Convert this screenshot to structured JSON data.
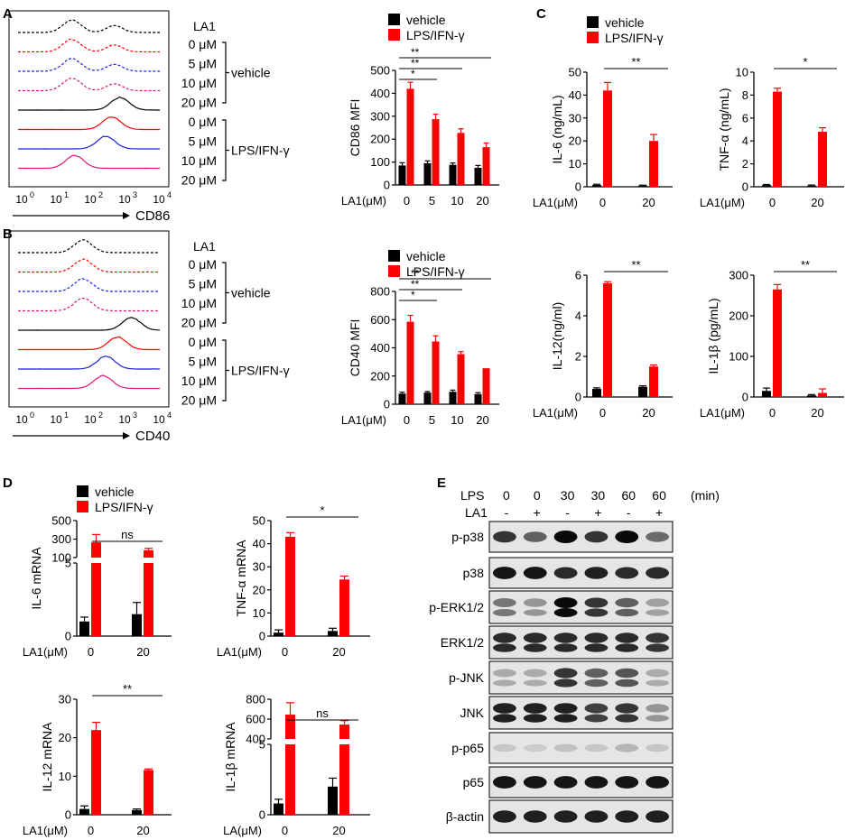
{
  "panels": {
    "A": "A",
    "B": "B",
    "C": "C",
    "D": "D",
    "E": "E"
  },
  "colors": {
    "vehicle": "#000000",
    "lps": "#ff0000",
    "blue": "#1a22e0",
    "magenta": "#e0157a"
  },
  "legend": {
    "vehicle": "vehicle",
    "lps": "LPS/IFN-γ"
  },
  "flow": {
    "la1_label": "LA1",
    "conc_labels": [
      "0 μM",
      "5 μM",
      "10 μM",
      "20 μM",
      "0 μM",
      "5 μM",
      "10 μM",
      "20 μM"
    ],
    "group_labels": [
      "vehicle",
      "LPS/IFN-γ"
    ],
    "xtick_base": [
      "10",
      "10",
      "10",
      "10",
      "10"
    ],
    "xtick_exp": [
      "0",
      "1",
      "2",
      "3",
      "4"
    ],
    "A_axis": "CD86",
    "B_axis": "CD40"
  },
  "chart_data": [
    {
      "id": "A_bar",
      "type": "bar",
      "ylabel": "CD86 MFI",
      "xlabel": "LA1(μM)",
      "categories": [
        "0",
        "5",
        "10",
        "20"
      ],
      "ylim": [
        0,
        500
      ],
      "yticks": [
        "0",
        "100",
        "200",
        "300",
        "400",
        "500"
      ],
      "series": [
        {
          "name": "vehicle",
          "values": [
            85,
            95,
            88,
            75
          ],
          "err": [
            12,
            10,
            8,
            10
          ]
        },
        {
          "name": "LPS/IFN-γ",
          "values": [
            420,
            287,
            227,
            165
          ],
          "err": [
            28,
            22,
            18,
            18
          ]
        }
      ],
      "sig": [
        "**",
        "**",
        "*"
      ]
    },
    {
      "id": "B_bar",
      "type": "bar",
      "ylabel": "CD40 MFI",
      "xlabel": "LA1(μM)",
      "categories": [
        "0",
        "5",
        "10",
        "20"
      ],
      "ylim": [
        0,
        800
      ],
      "yticks": [
        "0",
        "200",
        "400",
        "600",
        "800"
      ],
      "series": [
        {
          "name": "vehicle",
          "values": [
            75,
            82,
            88,
            72
          ],
          "err": [
            10,
            8,
            12,
            10
          ]
        },
        {
          "name": "LPS/IFN-γ",
          "values": [
            585,
            445,
            355,
            255
          ],
          "err": [
            45,
            40,
            18,
            0
          ]
        }
      ],
      "sig": [
        "**",
        "**",
        "*"
      ]
    },
    {
      "id": "C1",
      "type": "bar",
      "ylabel": "IL-6 (ng/mL)",
      "xlabel": "LA1(μM)",
      "categories": [
        "0",
        "20"
      ],
      "ylim": [
        0,
        50
      ],
      "yticks": [
        "0",
        "10",
        "20",
        "30",
        "40",
        "50"
      ],
      "series": [
        {
          "name": "vehicle",
          "values": [
            0.8,
            0.5
          ],
          "err": [
            0.3,
            0.2
          ]
        },
        {
          "name": "LPS/IFN-γ",
          "values": [
            42,
            20
          ],
          "err": [
            3.5,
            2.8
          ]
        }
      ],
      "sig": [
        "**"
      ]
    },
    {
      "id": "C2",
      "type": "bar",
      "ylabel": "TNF-α (ng/mL)",
      "xlabel": "LA1(μM)",
      "categories": [
        "0",
        "20"
      ],
      "ylim": [
        0,
        10
      ],
      "yticks": [
        "0",
        "2",
        "4",
        "6",
        "8",
        "10"
      ],
      "series": [
        {
          "name": "vehicle",
          "values": [
            0.15,
            0.1
          ],
          "err": [
            0.05,
            0.05
          ]
        },
        {
          "name": "LPS/IFN-γ",
          "values": [
            8.3,
            4.8
          ],
          "err": [
            0.3,
            0.35
          ]
        }
      ],
      "sig": [
        "*"
      ]
    },
    {
      "id": "C3",
      "type": "bar",
      "ylabel": "IL-12(ng/ml)",
      "xlabel": "LA1(μM)",
      "categories": [
        "0",
        "20"
      ],
      "ylim": [
        0,
        6
      ],
      "yticks": [
        "0",
        "2",
        "4",
        "6"
      ],
      "series": [
        {
          "name": "vehicle",
          "values": [
            0.4,
            0.5
          ],
          "err": [
            0.05,
            0.05
          ]
        },
        {
          "name": "LPS/IFN-γ",
          "values": [
            5.6,
            1.5
          ],
          "err": [
            0.08,
            0.08
          ]
        }
      ],
      "sig": [
        "**"
      ]
    },
    {
      "id": "C4",
      "type": "bar",
      "ylabel": "IL-1β (pg/mL)",
      "xlabel": "LA1(μM)",
      "categories": [
        "0",
        "20"
      ],
      "ylim": [
        0,
        300
      ],
      "yticks": [
        "0",
        "100",
        "200",
        "300"
      ],
      "series": [
        {
          "name": "vehicle",
          "values": [
            15,
            4
          ],
          "err": [
            7,
            2
          ]
        },
        {
          "name": "LPS/IFN-γ",
          "values": [
            265,
            10
          ],
          "err": [
            12,
            10
          ]
        }
      ],
      "sig": [
        "**"
      ]
    },
    {
      "id": "D1",
      "type": "bar",
      "ylabel": "IL-6 mRNA",
      "xlabel": "LA1(μM)",
      "categories": [
        "0",
        "20"
      ],
      "broken": true,
      "bottom_range": [
        0,
        5
      ],
      "top_range": [
        100,
        500
      ],
      "ticks_bottom": [
        "0",
        "5"
      ],
      "ticks_top": [
        "100",
        "300",
        "500"
      ],
      "series": [
        {
          "name": "vehicle",
          "values": [
            1,
            1.5
          ],
          "err": [
            0.3,
            0.8
          ]
        },
        {
          "name": "LPS/IFN-γ",
          "values": [
            265,
            180
          ],
          "err": [
            85,
            20
          ]
        }
      ],
      "sig": [
        "ns"
      ]
    },
    {
      "id": "D2",
      "type": "bar",
      "ylabel": "TNF-α mRNA",
      "xlabel": "LA1(μM)",
      "categories": [
        "0",
        "20"
      ],
      "ylim": [
        0,
        50
      ],
      "yticks": [
        "0",
        "10",
        "20",
        "30",
        "40",
        "50"
      ],
      "series": [
        {
          "name": "vehicle",
          "values": [
            1.5,
            2.2
          ],
          "err": [
            1.2,
            1.2
          ]
        },
        {
          "name": "LPS/IFN-γ",
          "values": [
            43,
            24.5
          ],
          "err": [
            1.8,
            1.5
          ]
        }
      ],
      "sig": [
        "*"
      ]
    },
    {
      "id": "D3",
      "type": "bar",
      "ylabel": "IL-12 mRNA",
      "xlabel": "LA1(μM)",
      "categories": [
        "0",
        "20"
      ],
      "ylim": [
        0,
        30
      ],
      "yticks": [
        "0",
        "10",
        "20",
        "30"
      ],
      "series": [
        {
          "name": "vehicle",
          "values": [
            1.5,
            1.2
          ],
          "err": [
            0.8,
            0.3
          ]
        },
        {
          "name": "LPS/IFN-γ",
          "values": [
            22,
            11.6
          ],
          "err": [
            2,
            0.3
          ]
        }
      ],
      "sig": [
        "**"
      ]
    },
    {
      "id": "D4",
      "type": "bar",
      "ylabel": "IL-1β mRNA",
      "xlabel": "LA(μM)",
      "categories": [
        "0",
        "20"
      ],
      "broken": true,
      "bottom_range": [
        0,
        5
      ],
      "top_range": [
        400,
        800
      ],
      "ticks_bottom": [
        "0",
        "5"
      ],
      "ticks_top": [
        "400",
        "600",
        "800"
      ],
      "series": [
        {
          "name": "vehicle",
          "values": [
            0.8,
            2
          ],
          "err": [
            0.3,
            0.6
          ]
        },
        {
          "name": "LPS/IFN-γ",
          "values": [
            645,
            545
          ],
          "err": [
            120,
            40
          ]
        }
      ],
      "sig": [
        "ns"
      ]
    }
  ],
  "western": {
    "header_lps": "LPS",
    "header_la1": "LA1",
    "unit": "(min)",
    "lps_times": [
      "0",
      "0",
      "30",
      "30",
      "60",
      "60"
    ],
    "la1": [
      "-",
      "+",
      "-",
      "+",
      "-",
      "+"
    ],
    "bands": [
      {
        "label": "p-p38",
        "intensity": [
          0.8,
          0.6,
          1.0,
          0.8,
          1.0,
          0.55
        ]
      },
      {
        "label": "p38",
        "intensity": [
          0.95,
          0.95,
          0.85,
          0.9,
          0.85,
          0.85
        ]
      },
      {
        "label": "p-ERK1/2",
        "intensity": [
          0.5,
          0.35,
          1.0,
          0.8,
          0.6,
          0.3
        ]
      },
      {
        "label": "ERK1/2",
        "intensity": [
          0.85,
          0.85,
          0.85,
          0.85,
          0.85,
          0.8
        ]
      },
      {
        "label": "p-JNK",
        "intensity": [
          0.25,
          0.25,
          0.8,
          0.6,
          0.65,
          0.25
        ]
      },
      {
        "label": "JNK",
        "intensity": [
          0.9,
          0.9,
          0.9,
          0.75,
          0.8,
          0.35
        ]
      },
      {
        "label": "p-p65",
        "intensity": [
          0.12,
          0.1,
          0.15,
          0.12,
          0.2,
          0.12
        ]
      },
      {
        "label": "p65",
        "intensity": [
          0.95,
          0.95,
          0.95,
          0.95,
          0.95,
          0.95
        ]
      },
      {
        "label": "β-actin",
        "intensity": [
          0.9,
          0.9,
          0.9,
          0.9,
          0.9,
          0.9
        ]
      }
    ]
  }
}
